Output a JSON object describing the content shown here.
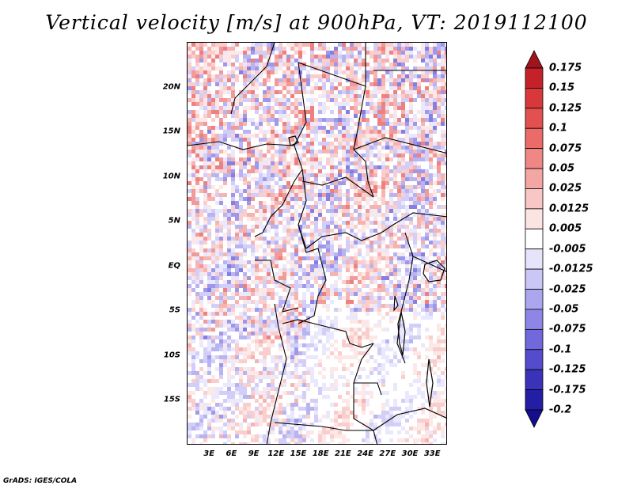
{
  "title": "Vertical velocity [m/s] at 900hPa, VT: 2019112100",
  "footer": "GrADS: IGES/COLA",
  "map": {
    "region": "Central Africa",
    "lon_range": [
      0,
      35
    ],
    "lat_range": [
      -20,
      25
    ],
    "y_tick_labels": [
      {
        "label": "20N",
        "lat": 20
      },
      {
        "label": "15N",
        "lat": 15
      },
      {
        "label": "10N",
        "lat": 10
      },
      {
        "label": "5N",
        "lat": 5
      },
      {
        "label": "EQ",
        "lat": 0
      },
      {
        "label": "5S",
        "lat": -5
      },
      {
        "label": "10S",
        "lat": -10
      },
      {
        "label": "15S",
        "lat": -15
      }
    ],
    "x_tick_labels": [
      {
        "label": "3E",
        "lon": 3
      },
      {
        "label": "6E",
        "lon": 6
      },
      {
        "label": "9E",
        "lon": 9
      },
      {
        "label": "12E",
        "lon": 12
      },
      {
        "label": "15E",
        "lon": 15
      },
      {
        "label": "18E",
        "lon": 18
      },
      {
        "label": "21E",
        "lon": 21
      },
      {
        "label": "24E",
        "lon": 24
      },
      {
        "label": "27E",
        "lon": 27
      },
      {
        "label": "30E",
        "lon": 30
      },
      {
        "label": "33E",
        "lon": 33
      }
    ]
  },
  "colorbar": {
    "levels": [
      "0.175",
      "0.15",
      "0.125",
      "0.1",
      "0.075",
      "0.05",
      "0.025",
      "0.0125",
      "0.005",
      "-0.005",
      "-0.0125",
      "-0.025",
      "-0.05",
      "-0.075",
      "-0.1",
      "-0.125",
      "-0.175",
      "-0.2"
    ],
    "colors": [
      "#a0141c",
      "#c42228",
      "#d8383a",
      "#e2514f",
      "#ea6b68",
      "#ef8885",
      "#f3a6a3",
      "#f8c6c4",
      "#fce4e3",
      "#ffffff",
      "#e6e4fb",
      "#cac6f6",
      "#aca6ef",
      "#8e86e6",
      "#7068dc",
      "#544ccd",
      "#3a33ba",
      "#241ea4",
      "#140e8c"
    ]
  }
}
